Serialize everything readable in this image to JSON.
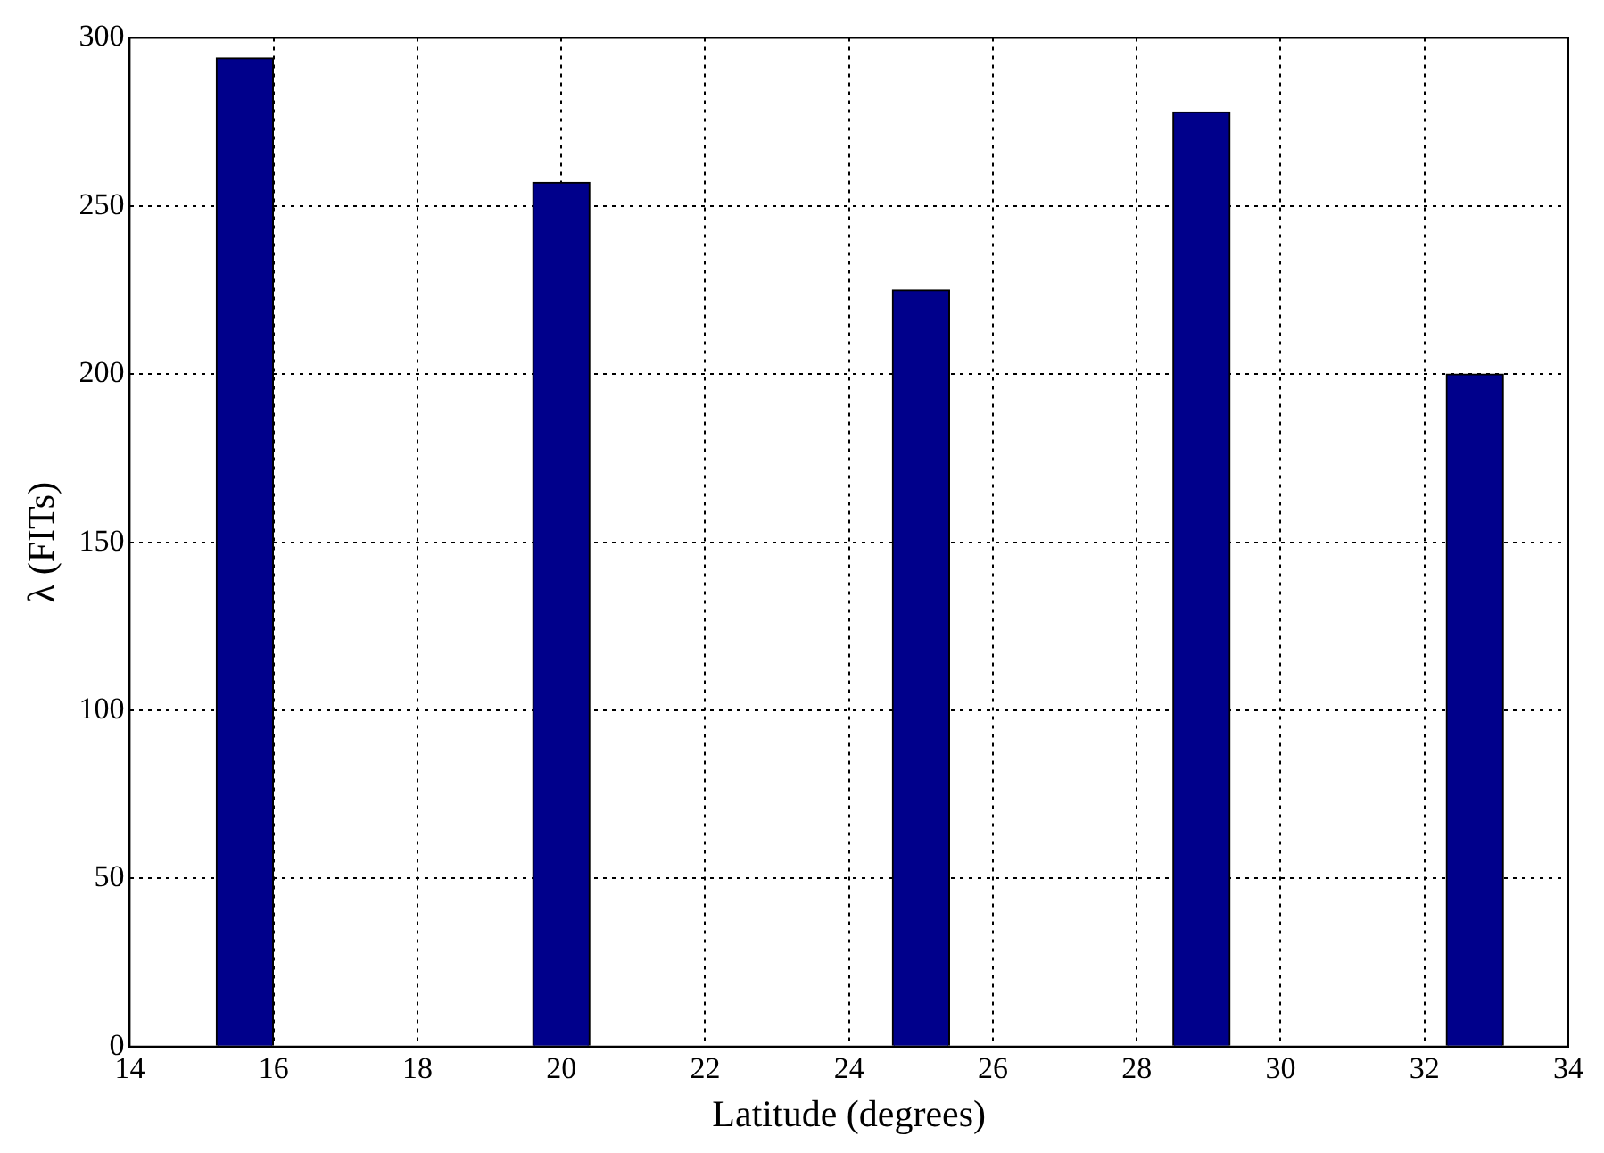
{
  "chart_data": {
    "type": "bar",
    "xlabel": "Latitude (degrees)",
    "ylabel": "λ (FITs)",
    "x": [
      15.6,
      20,
      25,
      28.9,
      32.7
    ],
    "values": [
      294,
      257,
      225,
      278,
      200
    ],
    "color": "#00008b",
    "xlim": [
      14,
      34
    ],
    "xticks": [
      14,
      16,
      18,
      20,
      22,
      24,
      26,
      28,
      30,
      32,
      34
    ],
    "ylim": [
      0,
      300
    ],
    "yticks": [
      0,
      50,
      100,
      150,
      200,
      250,
      300
    ],
    "grid": true
  }
}
